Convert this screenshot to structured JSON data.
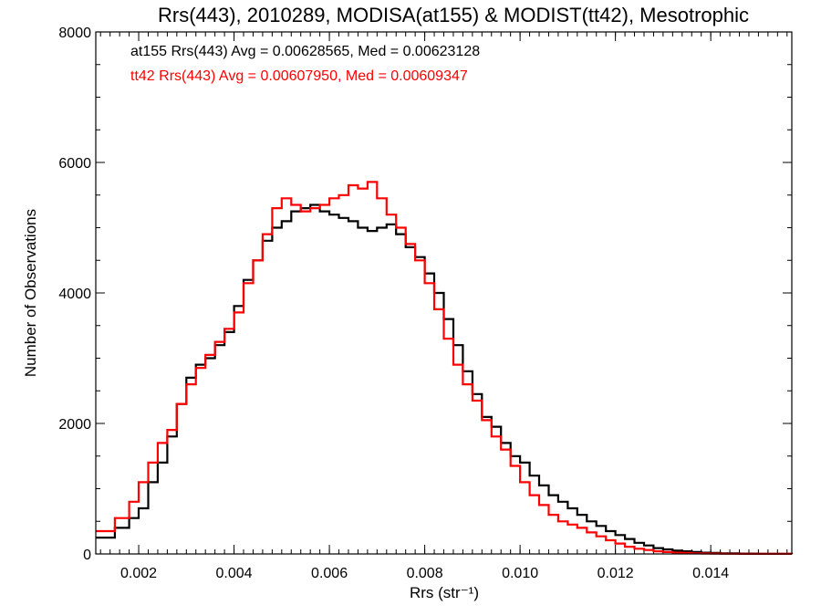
{
  "chart_data": {
    "type": "line",
    "title": "Rrs(443), 2010289, MODISA(at155) & MODIST(tt42), Mesotrophic",
    "xlabel": "Rrs (str⁻¹)",
    "ylabel": "Number of Observations",
    "xlim": [
      0.0011,
      0.0157
    ],
    "ylim": [
      0,
      8000
    ],
    "xticks": [
      0.002,
      0.004,
      0.006,
      0.008,
      0.01,
      0.012,
      0.014
    ],
    "xtick_labels": [
      "0.002",
      "0.004",
      "0.006",
      "0.008",
      "0.010",
      "0.012",
      "0.014"
    ],
    "yticks": [
      0,
      2000,
      4000,
      6000,
      8000
    ],
    "ytick_labels": [
      "0",
      "2000",
      "4000",
      "6000",
      "8000"
    ],
    "grid": false,
    "legend_position": "top-left",
    "series": [
      {
        "name": "at155 Rrs(443) Avg = 0.00628565, Med = 0.00623128",
        "color": "#000000",
        "x": [
          0.0011,
          0.0015,
          0.0018,
          0.002,
          0.0022,
          0.0024,
          0.0026,
          0.0028,
          0.003,
          0.0032,
          0.0034,
          0.0036,
          0.0038,
          0.004,
          0.0042,
          0.0044,
          0.0046,
          0.0048,
          0.005,
          0.0052,
          0.0054,
          0.0056,
          0.0058,
          0.006,
          0.0062,
          0.0064,
          0.0066,
          0.0068,
          0.007,
          0.0072,
          0.0074,
          0.0076,
          0.0078,
          0.008,
          0.0082,
          0.0084,
          0.0086,
          0.0088,
          0.009,
          0.0092,
          0.0094,
          0.0096,
          0.0098,
          0.01,
          0.0102,
          0.0104,
          0.0106,
          0.0108,
          0.011,
          0.0112,
          0.0114,
          0.0116,
          0.0118,
          0.012,
          0.0122,
          0.0124,
          0.0126,
          0.0128,
          0.013,
          0.0132,
          0.0134,
          0.0136,
          0.0138,
          0.014,
          0.0142,
          0.0146,
          0.015,
          0.0157
        ],
        "y": [
          250,
          400,
          550,
          700,
          1100,
          1400,
          1800,
          2300,
          2700,
          2900,
          3000,
          3200,
          3400,
          3800,
          4200,
          4500,
          4800,
          5000,
          5100,
          5250,
          5300,
          5350,
          5250,
          5200,
          5150,
          5100,
          5000,
          4950,
          5000,
          5050,
          4900,
          4700,
          4550,
          4300,
          4000,
          3600,
          3200,
          2800,
          2450,
          2100,
          1950,
          1700,
          1500,
          1400,
          1200,
          1050,
          900,
          800,
          700,
          600,
          500,
          430,
          350,
          290,
          230,
          170,
          130,
          90,
          70,
          50,
          40,
          30,
          20,
          15,
          10,
          5,
          3,
          0
        ]
      },
      {
        "name": "tt42 Rrs(443) Avg = 0.00607950, Med = 0.00609347",
        "color": "#ff0000",
        "x": [
          0.0011,
          0.0015,
          0.0018,
          0.002,
          0.0022,
          0.0024,
          0.0026,
          0.0028,
          0.003,
          0.0032,
          0.0034,
          0.0036,
          0.0038,
          0.004,
          0.0042,
          0.0044,
          0.0046,
          0.0048,
          0.005,
          0.0052,
          0.0054,
          0.0056,
          0.0058,
          0.006,
          0.0062,
          0.0064,
          0.0066,
          0.0068,
          0.007,
          0.0072,
          0.0074,
          0.0076,
          0.0078,
          0.008,
          0.0082,
          0.0084,
          0.0086,
          0.0088,
          0.009,
          0.0092,
          0.0094,
          0.0096,
          0.0098,
          0.01,
          0.0102,
          0.0104,
          0.0106,
          0.0108,
          0.011,
          0.0112,
          0.0114,
          0.0116,
          0.0118,
          0.012,
          0.0122,
          0.0124,
          0.0126,
          0.0128,
          0.013,
          0.0132,
          0.0134,
          0.0136,
          0.0138,
          0.014,
          0.0142,
          0.0146,
          0.015,
          0.0157
        ],
        "y": [
          350,
          550,
          800,
          1100,
          1400,
          1700,
          1900,
          2300,
          2600,
          2850,
          3050,
          3250,
          3450,
          3700,
          4150,
          4500,
          4900,
          5300,
          5450,
          5350,
          5250,
          5300,
          5350,
          5450,
          5500,
          5650,
          5600,
          5700,
          5450,
          5200,
          5000,
          4750,
          4500,
          4150,
          3750,
          3300,
          2900,
          2600,
          2350,
          2050,
          1800,
          1600,
          1350,
          1100,
          900,
          750,
          600,
          500,
          450,
          400,
          330,
          270,
          210,
          160,
          110,
          80,
          60,
          40,
          30,
          20,
          15,
          10,
          7,
          5,
          3,
          2,
          1,
          0
        ]
      }
    ]
  }
}
